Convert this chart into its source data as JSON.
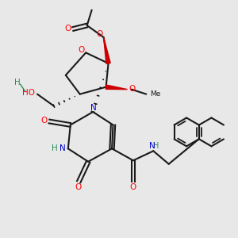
{
  "background_color": "#e8e8e8",
  "figsize": [
    3.0,
    3.0
  ],
  "dpi": 100,
  "colors": {
    "O": "#ff0000",
    "N": "#0000cd",
    "C": "#1a1a1a",
    "H": "#2e8b57",
    "bond": "#1a1a1a",
    "wedge_red": "#cc0000"
  },
  "xlim": [
    0,
    10
  ],
  "ylim": [
    0,
    10
  ]
}
